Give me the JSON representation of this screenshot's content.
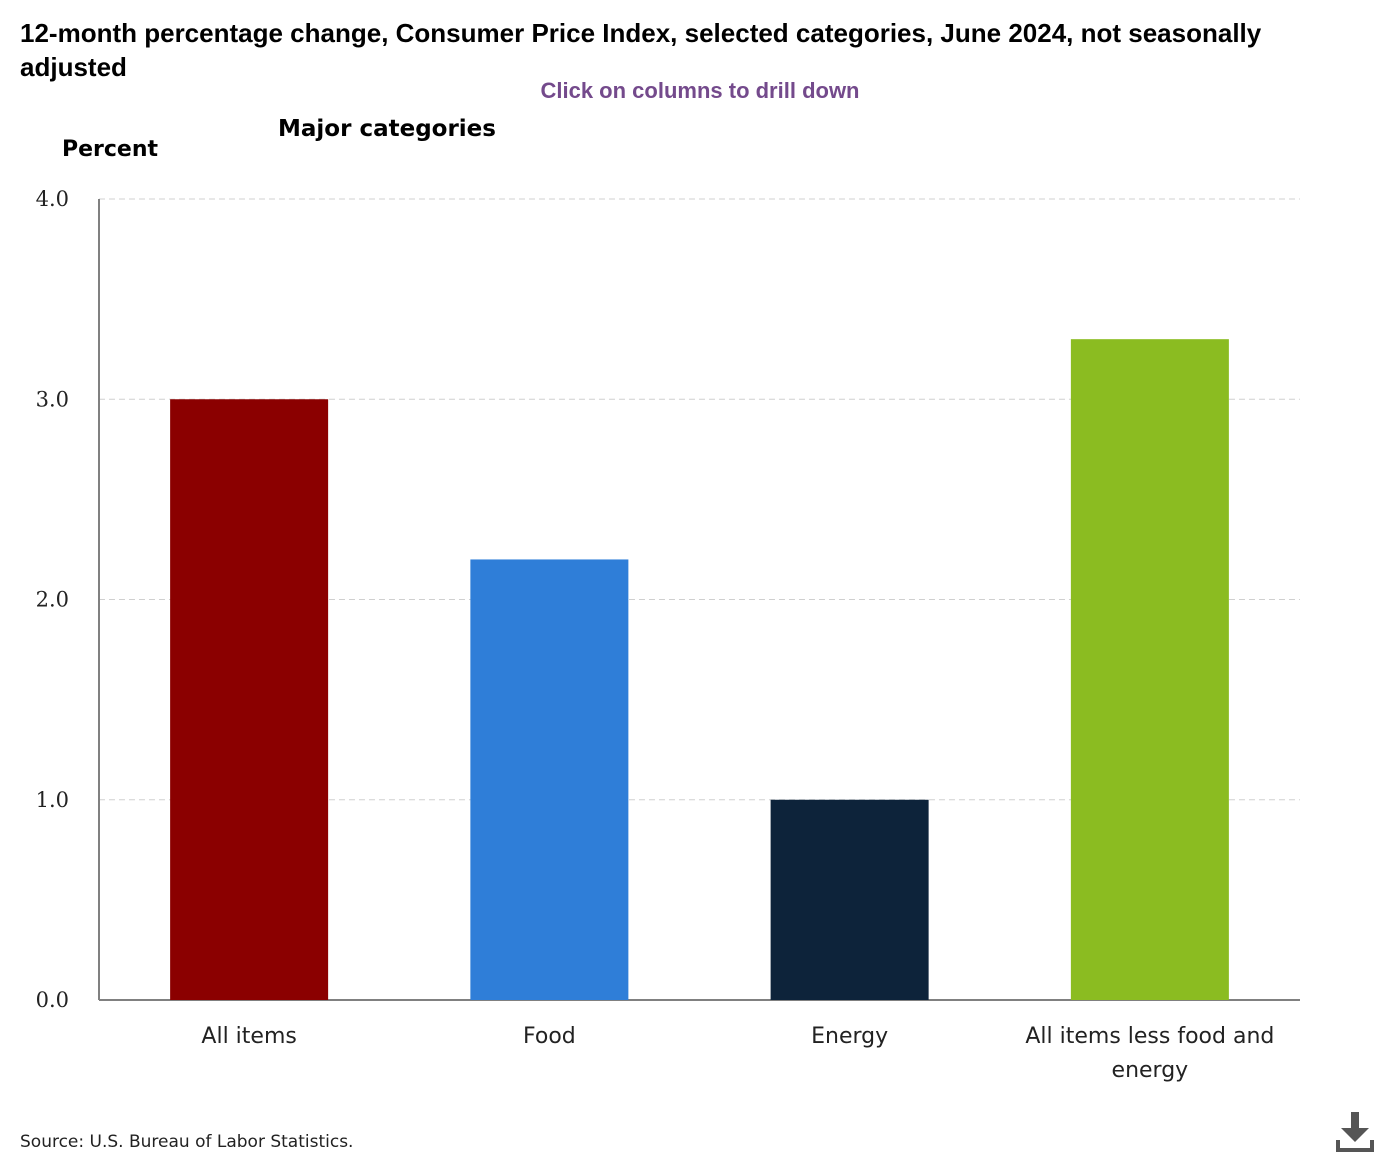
{
  "title": "12-month percentage change, Consumer Price Index, selected categories, June 2024, not seasonally adjusted",
  "drill_hint": "Click on columns to drill down",
  "source": "Source: U.S. Bureau of Labor Statistics.",
  "icons": {
    "download": "download-icon"
  },
  "chart_data": {
    "type": "bar",
    "title": "12-month percentage change, Consumer Price Index, selected categories, June 2024, not seasonally adjusted",
    "subtitle": "Major categories",
    "ylabel": "Percent",
    "xlabel": "",
    "ylim": [
      0,
      4
    ],
    "yticks": [
      "0.0",
      "1.0",
      "2.0",
      "3.0",
      "4.0"
    ],
    "grid": true,
    "categories": [
      [
        "All items"
      ],
      [
        "Food"
      ],
      [
        "Energy"
      ],
      [
        "All items less food and",
        "energy"
      ]
    ],
    "values": [
      3.0,
      2.2,
      1.0,
      3.3
    ],
    "colors": [
      "#8b0000",
      "#2f7ed8",
      "#0d233a",
      "#8bbc21"
    ]
  }
}
